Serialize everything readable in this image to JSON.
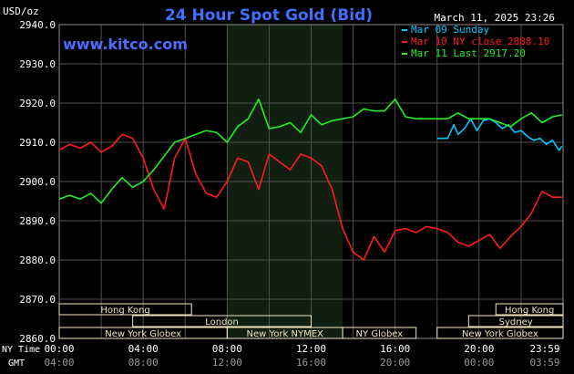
{
  "header": {
    "title": "24 Hour Spot Gold (Bid)",
    "unit": "USD/oz",
    "datetime": "March 11, 2025 23:26",
    "site": "www.kitco.com"
  },
  "colors": {
    "background": "#000000",
    "plot_bg": "#000000",
    "highlight_bg": "#111f11",
    "grid": "#505050",
    "axis_text": "#ffffff",
    "title": "#3f6fff",
    "site": "#4d6cff",
    "session_box": "#f2e6c0",
    "session_text": "#000000",
    "series_sunday": "#00c8ff",
    "series_close": "#ff1a1a",
    "series_last": "#22ee22"
  },
  "legend": [
    {
      "label": "Mar 09 Sunday",
      "color": "#00c8ff"
    },
    {
      "label": "Mar 10 NY close 2888.10",
      "color": "#ff1a1a"
    },
    {
      "label": "Mar 11 Last 2917.20",
      "color": "#22ee22"
    }
  ],
  "axes": {
    "y_labels": [
      "2940.0",
      "2930.0",
      "2920.0",
      "2910.0",
      "2900.0",
      "2890.0",
      "2880.0",
      "2870.0",
      "2860.0"
    ],
    "ny_time_label": "NY Time",
    "gmt_label": "GMT",
    "ny_ticks": [
      "00:00",
      "04:00",
      "08:00",
      "12:00",
      "16:00",
      "20:00",
      "23:59"
    ],
    "gmt_ticks": [
      "04:00",
      "08:00",
      "12:00",
      "16:00",
      "20:00",
      "00:00",
      "03:59"
    ]
  },
  "sessions": [
    {
      "name": "Hong Kong",
      "start": 0,
      "end": 6.3,
      "row": 0
    },
    {
      "name": "Hong Kong",
      "start": 20.8,
      "end": 24,
      "row": 0
    },
    {
      "name": "London",
      "start": 3.5,
      "end": 12.0,
      "row": 1
    },
    {
      "name": "Sydney",
      "start": 19.5,
      "end": 24,
      "row": 1
    },
    {
      "name": "New York Globex",
      "start": 0,
      "end": 8.0,
      "row": 2
    },
    {
      "name": "New York NYMEX",
      "start": 8.0,
      "end": 13.5,
      "row": 2
    },
    {
      "name": "NY Globex",
      "start": 13.5,
      "end": 17.0,
      "row": 2
    },
    {
      "name": "New York Globex",
      "start": 18.0,
      "end": 24,
      "row": 2
    }
  ],
  "chart_data": {
    "type": "line",
    "title": "24 Hour Spot Gold (Bid)",
    "ylabel": "USD/oz",
    "xlabel": "NY Time",
    "xlim": [
      0,
      24
    ],
    "ylim": [
      2860,
      2940
    ],
    "x_unit": "hours (NY Time)",
    "highlight_range": [
      8.0,
      13.5
    ],
    "grid": true,
    "legend_position": "top-right",
    "series": [
      {
        "name": "Mar 09 Sunday",
        "color": "#00c8ff",
        "x": [
          18.0,
          18.5,
          18.8,
          19.0,
          19.3,
          19.6,
          19.9,
          20.2,
          20.5,
          20.8,
          21.1,
          21.4,
          21.7,
          22.0,
          22.3,
          22.6,
          22.9,
          23.2,
          23.5,
          23.8,
          23.95
        ],
        "y": [
          2911.0,
          2911.0,
          2914.5,
          2912.0,
          2913.5,
          2916.0,
          2913.0,
          2915.5,
          2916.0,
          2915.0,
          2913.5,
          2914.5,
          2912.5,
          2913.0,
          2911.5,
          2910.5,
          2911.0,
          2909.5,
          2910.5,
          2908.0,
          2909.0
        ]
      },
      {
        "name": "Mar 10 NY close 2888.10",
        "color": "#ff1a1a",
        "x": [
          0.0,
          0.5,
          1.0,
          1.5,
          2.0,
          2.5,
          3.0,
          3.5,
          4.0,
          4.5,
          5.0,
          5.5,
          6.0,
          6.5,
          7.0,
          7.5,
          8.0,
          8.5,
          9.0,
          9.5,
          10.0,
          10.5,
          11.0,
          11.5,
          12.0,
          12.5,
          13.0,
          13.5,
          14.0,
          14.5,
          15.0,
          15.5,
          16.0,
          16.5,
          17.0,
          17.5,
          18.0,
          18.5,
          19.0,
          19.5,
          20.0,
          20.5,
          21.0,
          21.5,
          22.0,
          22.5,
          23.0,
          23.5,
          23.95
        ],
        "y": [
          2908.0,
          2909.5,
          2908.5,
          2910.0,
          2907.5,
          2909.0,
          2912.0,
          2911.0,
          2906.0,
          2898.0,
          2893.0,
          2906.0,
          2911.0,
          2902.0,
          2897.0,
          2896.0,
          2900.0,
          2906.0,
          2905.0,
          2898.0,
          2907.0,
          2905.0,
          2903.0,
          2907.0,
          2906.0,
          2904.0,
          2898.0,
          2888.0,
          2882.0,
          2880.0,
          2886.0,
          2882.0,
          2887.5,
          2888.0,
          2887.0,
          2888.5,
          2888.0,
          2887.0,
          2884.5,
          2883.5,
          2885.0,
          2886.5,
          2883.0,
          2886.0,
          2888.5,
          2892.0,
          2897.5,
          2896.0,
          2896.0
        ]
      },
      {
        "name": "Mar 11 Last 2917.20",
        "color": "#22ee22",
        "x": [
          0.0,
          0.5,
          1.0,
          1.5,
          2.0,
          2.5,
          3.0,
          3.5,
          4.0,
          4.5,
          5.0,
          5.5,
          6.0,
          6.5,
          7.0,
          7.5,
          8.0,
          8.5,
          9.0,
          9.5,
          10.0,
          10.5,
          11.0,
          11.5,
          12.0,
          12.5,
          13.0,
          13.5,
          14.0,
          14.5,
          15.0,
          15.5,
          16.0,
          16.5,
          17.0,
          17.5,
          18.0,
          18.5,
          19.0,
          19.5,
          20.0,
          20.5,
          21.0,
          21.5,
          22.0,
          22.5,
          23.0,
          23.5,
          23.95
        ],
        "y": [
          2895.5,
          2896.5,
          2895.5,
          2897.0,
          2894.5,
          2898.0,
          2901.0,
          2898.5,
          2900.0,
          2903.0,
          2906.5,
          2910.0,
          2911.0,
          2912.0,
          2913.0,
          2912.5,
          2910.0,
          2914.0,
          2916.0,
          2921.0,
          2913.5,
          2914.0,
          2915.0,
          2912.5,
          2917.0,
          2914.5,
          2915.5,
          2916.0,
          2916.5,
          2918.5,
          2918.0,
          2918.0,
          2921.0,
          2916.5,
          2916.0,
          2916.0,
          2916.0,
          2916.0,
          2917.5,
          2916.0,
          2916.0,
          2916.0,
          2915.0,
          2914.0,
          2916.0,
          2917.5,
          2915.0,
          2916.5,
          2917.0
        ]
      }
    ]
  }
}
